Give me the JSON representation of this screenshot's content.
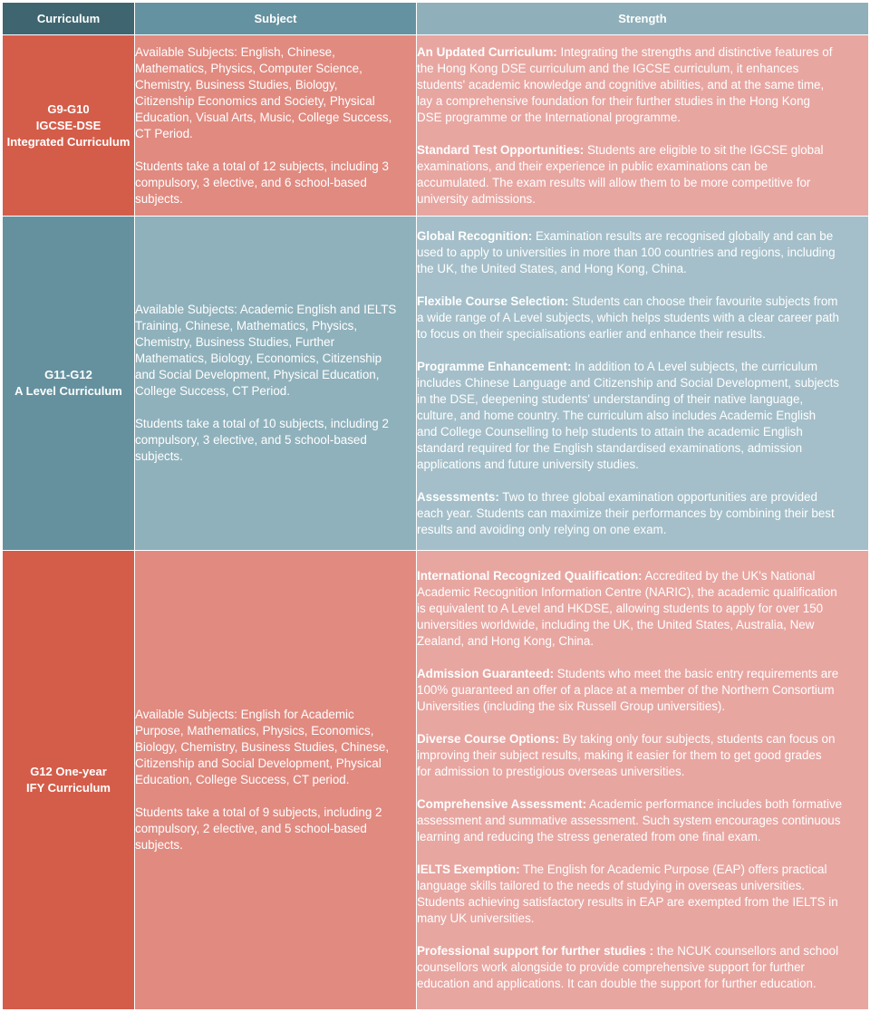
{
  "header": {
    "curriculum": "Curriculum",
    "subject": "Subject",
    "strength": "Strength"
  },
  "rows": [
    {
      "curriculum_lines": [
        "G9-G10",
        "IGCSE-DSE",
        "Integrated Curriculum"
      ],
      "subject_paragraphs": [
        [
          "Available Subjects: English, Chinese,",
          "Mathematics, Physics, Computer Science,",
          "Chemistry, Business Studies, Biology,",
          "Citizenship Economics and Society, Physical",
          "Education, Visual Arts, Music, College Success,",
          "CT Period."
        ],
        [
          "Students take a total of 12 subjects, including 3",
          "compulsory, 3 elective, and 6 school-based",
          "subjects."
        ]
      ],
      "strengths": [
        {
          "label": "An Updated Curriculum:",
          "lines": [
            " Integrating the strengths and distinctive features of",
            "the Hong Kong DSE curriculum and the IGCSE curriculum, it enhances",
            "students' academic knowledge and cognitive abilities, and at the same time,",
            "lay a comprehensive foundation for their further studies in the Hong Kong",
            "DSE programme or the International programme."
          ]
        },
        {
          "label": "Standard Test Opportunities:",
          "lines": [
            " Students are eligible to sit the IGCSE global",
            "examinations, and their experience in public examinations can be",
            "accumulated. The exam results will allow them to be more competitive for",
            "university admissions."
          ]
        }
      ]
    },
    {
      "curriculum_lines": [
        "G11-G12",
        "A  Level Curriculum"
      ],
      "subject_paragraphs": [
        [
          "Available Subjects: Academic English and IELTS",
          "Training, Chinese, Mathematics, Physics,",
          "Chemistry, Business Studies, Further",
          "Mathematics, Biology, Economics, Citizenship",
          "and Social Development, Physical Education,",
          "College Success, CT Period."
        ],
        [
          "Students take a total of 10 subjects, including 2",
          "compulsory, 3 elective, and 5 school-based",
          "subjects."
        ]
      ],
      "strengths": [
        {
          "label": "Global Recognition:",
          "lines": [
            " Examination results are recognised globally and can be",
            "used to apply to universities in more than 100 countries and regions, including",
            "the UK, the United States, and Hong Kong, China."
          ]
        },
        {
          "label": "Flexible Course Selection:",
          "lines": [
            " Students can choose their favourite subjects from",
            "a wide range of A Level subjects, which helps students with a clear career path",
            "to focus on their specialisations earlier and enhance their results."
          ]
        },
        {
          "label": "Programme Enhancement:",
          "lines": [
            " In addition to A Level  subjects, the curriculum",
            "includes Chinese Language and Citizenship and Social Development, subjects",
            "in the DSE, deepening students' understanding of their native language,",
            "culture, and home country. The curriculum also includes Academic English",
            "and College Counselling to help students to attain the academic English",
            "standard required for the English standardised examinations, admission",
            "applications and future university studies."
          ]
        },
        {
          "label": "Assessments:",
          "lines": [
            " Two to three global examination opportunities are provided",
            "each year. Students can maximize their performances by combining their best",
            "results and avoiding only relying on one exam."
          ]
        }
      ]
    },
    {
      "curriculum_lines": [
        "G12 One-year",
        "IFY Curriculum"
      ],
      "subject_paragraphs": [
        [
          "Available Subjects: English for Academic",
          "Purpose, Mathematics, Physics, Economics,",
          "Biology, Chemistry, Business Studies, Chinese,",
          "Citizenship and Social Development, Physical",
          "Education, College Success, CT period."
        ],
        [
          "Students take a total of 9 subjects, including 2",
          "compulsory, 2 elective, and 5 school-based",
          "subjects."
        ]
      ],
      "strengths": [
        {
          "label": "International Recognized Qualification:",
          "lines": [
            " Accredited by the UK's National",
            "Academic Recognition Information Centre (NARIC), the academic qualification",
            "is equivalent to A Level and HKDSE, allowing students to apply for over 150",
            "universities worldwide, including the UK, the United States, Australia, New",
            "Zealand, and Hong Kong, China."
          ]
        },
        {
          "label": "Admission Guaranteed:",
          "lines": [
            "  Students who meet the basic entry requirements are",
            "100% guaranteed an offer of a place at a member of the Northern Consortium",
            "Universities  (including the six Russell Group universities)."
          ]
        },
        {
          "label": "Diverse Course Options:",
          "lines": [
            " By taking only four subjects, students can focus on",
            "improving their subject results, making it easier for them to get good grades",
            "for admission to prestigious overseas universities."
          ]
        },
        {
          "label": "Comprehensive Assessment:",
          "lines": [
            " Academic performance includes both formative",
            "assessment and summative assessment. Such system encourages continuous",
            "learning and reducing the stress generated from one final exam."
          ]
        },
        {
          "label": "IELTS Exemption:",
          "lines": [
            " The English for Academic Purpose (EAP) offers practical",
            "language skills tailored to the needs of studying in overseas universities.",
            "Students achieving satisfactory results in EAP are exempted from the IELTS in",
            "many UK universities."
          ]
        },
        {
          "label": "Professional support for further studies :",
          "lines": [
            " the NCUK counsellors and school",
            "counsellors work alongside to provide comprehensive support for further",
            "education and applications. It can double the  support  for further education."
          ]
        }
      ]
    }
  ]
}
